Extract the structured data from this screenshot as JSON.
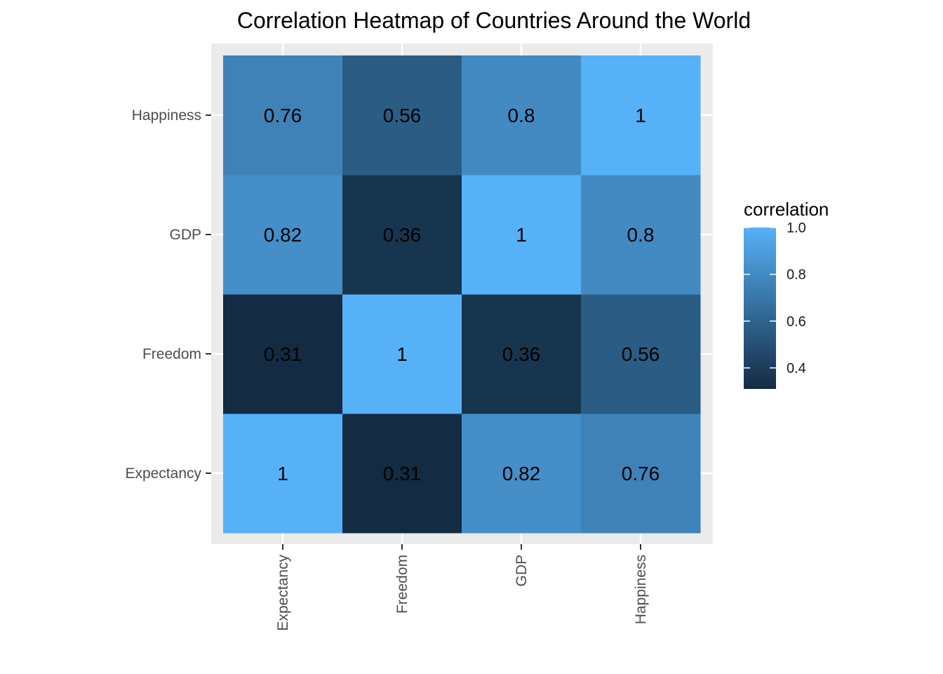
{
  "chart_data": {
    "type": "heatmap",
    "title": "Correlation Heatmap of Countries Around the World",
    "x_categories": [
      "Expectancy",
      "Freedom",
      "GDP",
      "Happiness"
    ],
    "y_categories": [
      "Expectancy",
      "Freedom",
      "GDP",
      "Happiness"
    ],
    "values": [
      [
        1,
        0.31,
        0.82,
        0.76
      ],
      [
        0.31,
        1,
        0.36,
        0.56
      ],
      [
        0.82,
        0.36,
        1,
        0.8
      ],
      [
        0.76,
        0.56,
        0.8,
        1
      ]
    ],
    "value_labels": [
      [
        "1",
        "0.31",
        "0.82",
        "0.76"
      ],
      [
        "0.31",
        "1",
        "0.36",
        "0.56"
      ],
      [
        "0.82",
        "0.36",
        "1",
        "0.8"
      ],
      [
        "0.76",
        "0.56",
        "0.8",
        "1"
      ]
    ],
    "xlabel": "",
    "ylabel": "",
    "legend": {
      "title": "correlation",
      "ticks": [
        1.0,
        0.8,
        0.6,
        0.4
      ],
      "tick_labels": [
        "1.0",
        "0.8",
        "0.6",
        "0.4"
      ],
      "range": [
        0.31,
        1.0
      ],
      "low_color": "#132b43",
      "high_color": "#56b1f7",
      "position": "right"
    },
    "grid": true,
    "panel_background": "#ebebeb",
    "grid_color": "#ffffff"
  }
}
